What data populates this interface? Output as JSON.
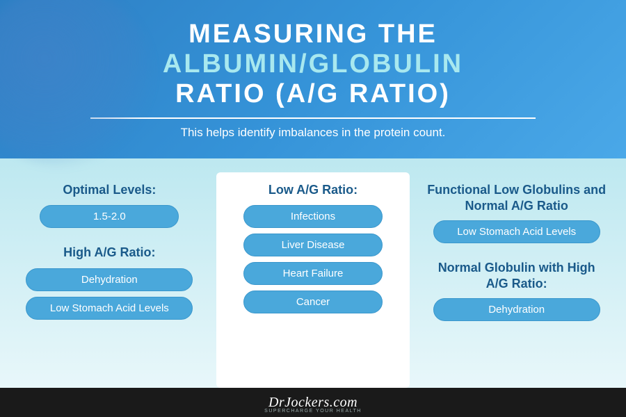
{
  "header": {
    "title_line1": "MEASURING THE",
    "title_line2": "ALBUMIN/GLOBULIN",
    "title_line3": "RATIO (A/G RATIO)",
    "subtitle": "This helps identify imbalances in the protein count.",
    "bg_gradient_start": "#2d7fc4",
    "bg_gradient_end": "#4aa8e8",
    "title_color": "#ffffff",
    "highlight_color": "#a8e8ef",
    "title_fontsize": 38,
    "subtitle_fontsize": 17
  },
  "body": {
    "bg_gradient_start": "#bde8f0",
    "bg_gradient_end": "#e8f7fa",
    "pill_bg": "#4aa8db",
    "pill_text_color": "#ffffff",
    "section_title_color": "#1a5a8a",
    "center_panel_bg": "#ffffff"
  },
  "columns": {
    "left": {
      "sections": [
        {
          "title": "Optimal Levels:",
          "items": [
            "1.5-2.0"
          ]
        },
        {
          "title": "High A/G Ratio:",
          "items": [
            "Dehydration",
            "Low Stomach Acid Levels"
          ]
        }
      ]
    },
    "center": {
      "sections": [
        {
          "title": "Low A/G Ratio:",
          "items": [
            "Infections",
            "Liver Disease",
            "Heart Failure",
            "Cancer"
          ]
        }
      ]
    },
    "right": {
      "sections": [
        {
          "title": "Functional Low Globulins and Normal A/G Ratio",
          "items": [
            "Low Stomach Acid Levels"
          ]
        },
        {
          "title": "Normal Globulin with High A/G Ratio:",
          "items": [
            "Dehydration"
          ]
        }
      ]
    }
  },
  "footer": {
    "brand": "DrJockers.com",
    "tag": "SUPERCHARGE YOUR HEALTH",
    "bg": "#1a1a1a",
    "text_color": "#ffffff"
  }
}
